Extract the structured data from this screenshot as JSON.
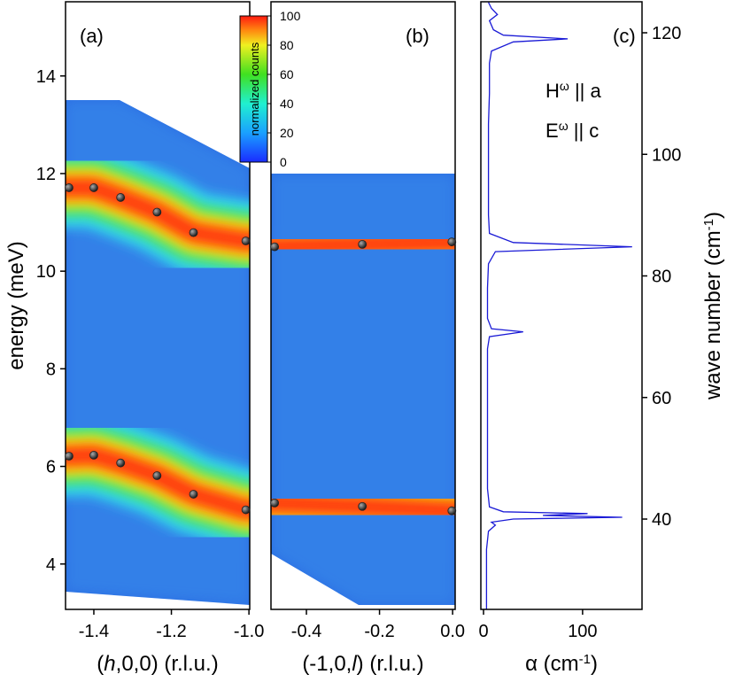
{
  "chart_data": [
    {
      "type": "scatter",
      "panel_label": "(a)",
      "ylabel": "energy (meV)",
      "xlabel": [
        {
          "text": "("
        },
        {
          "text": "h",
          "italic": true
        },
        {
          "text": ",0,0) (r.l.u.)"
        }
      ],
      "xlim": [
        -1.473,
        -0.998
      ],
      "xticks": [
        -1.4,
        -1.2,
        {
          "value": -1,
          "label": "-1.0"
        }
      ],
      "ylim": [
        3.07,
        15.52
      ],
      "yticks": [
        4,
        6,
        8,
        10,
        12,
        14
      ],
      "series": [
        {
          "color": "#222222",
          "x": [
            -1.464,
            -1.4,
            -1.331,
            -1.237,
            -1.143,
            -1.008
          ],
          "values": [
            11.71,
            11.71,
            11.51,
            11.21,
            10.79,
            10.62
          ]
        },
        {
          "color": "#222222",
          "x": [
            -1.464,
            -1.4,
            -1.331,
            -1.237,
            -1.143,
            -1.008
          ],
          "values": [
            6.21,
            6.23,
            6.07,
            5.81,
            5.43,
            5.11
          ]
        }
      ],
      "colorbar": {
        "label": "normalized counts",
        "lim": [
          0,
          100
        ],
        "ticks": [
          0,
          20,
          40,
          60,
          80,
          100
        ]
      }
    },
    {
      "type": "scatter",
      "panel_label": "(b)",
      "xlabel": [
        {
          "text": "(-1,0,"
        },
        {
          "text": "l",
          "italic": true
        },
        {
          "text": ") (r.l.u.)"
        }
      ],
      "xlim": [
        -0.497,
        0.007
      ],
      "xticks": [
        -0.4,
        -0.2,
        {
          "value": 0,
          "label": "0.0"
        }
      ],
      "ylim": [
        3.07,
        15.52
      ],
      "series": [
        {
          "color": "#222222",
          "x": [
            -0.487,
            -0.247,
            -0.002
          ],
          "values": [
            10.5,
            10.55,
            10.6
          ]
        },
        {
          "color": "#222222",
          "x": [
            -0.487,
            -0.247,
            -0.002
          ],
          "values": [
            5.25,
            5.18,
            5.09
          ]
        }
      ]
    },
    {
      "type": "line",
      "panel_label": "(c)",
      "orientation": "vertical",
      "xlabel": [
        {
          "text": "α (cm"
        },
        {
          "text": "-1",
          "sup": true
        },
        {
          "text": ")"
        }
      ],
      "y2label": [
        {
          "text": "wave number (cm"
        },
        {
          "text": "-1",
          "sup": true
        },
        {
          "text": ")"
        }
      ],
      "xlim": [
        -2.7,
        160
      ],
      "xticks": [
        0,
        100
      ],
      "y2lim": [
        25.14,
        125.1
      ],
      "y2ticks": [
        40,
        60,
        80,
        100,
        120
      ],
      "annotations": [
        [
          {
            "text": "H"
          },
          {
            "text": "ω",
            "sup": true
          },
          {
            "text": " || a"
          }
        ],
        [
          {
            "text": "E"
          },
          {
            "text": "ω",
            "sup": true
          },
          {
            "text": " || c"
          }
        ]
      ],
      "series": [
        {
          "color": "#1a1ad6",
          "x": [
            25.2,
            30,
            35,
            38,
            39,
            39.5,
            40,
            40.3,
            40.6,
            40.9,
            41.2,
            42,
            45,
            50,
            55,
            60,
            65,
            68,
            70,
            70.8,
            71.3,
            73,
            78,
            82,
            84,
            84.8,
            85.5,
            87,
            90,
            95,
            100,
            105,
            110,
            115,
            117,
            118.5,
            119,
            119.6,
            120.5,
            122,
            123,
            124,
            125
          ],
          "values": [
            3,
            3,
            3,
            5,
            12,
            8,
            30,
            140,
            60,
            105,
            20,
            6,
            4,
            4,
            4,
            4,
            4,
            4,
            6,
            40,
            8,
            4,
            4,
            5,
            12,
            150,
            30,
            6,
            5,
            5,
            5,
            5,
            6,
            6,
            8,
            30,
            85,
            20,
            10,
            6,
            14,
            8,
            5
          ]
        }
      ]
    }
  ]
}
